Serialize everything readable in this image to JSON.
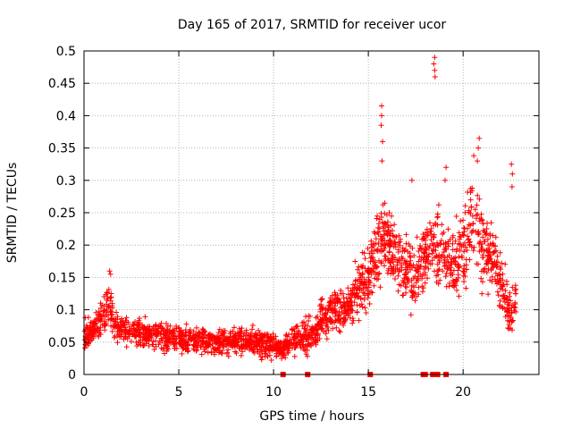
{
  "chart_data": {
    "type": "scatter",
    "title": "Day 165 of 2017, SRMTID for receiver ucor",
    "xlabel": "GPS time / hours",
    "ylabel": "SRMTID / TECUs",
    "xlim": [
      0,
      24
    ],
    "ylim": [
      0,
      0.5
    ],
    "xticks": [
      0,
      5,
      10,
      15,
      20
    ],
    "xtick_labels": [
      "0",
      "5",
      "10",
      "15",
      "20"
    ],
    "yticks": [
      0,
      0.05,
      0.1,
      0.15,
      0.2,
      0.25,
      0.3,
      0.35,
      0.4,
      0.45,
      0.5
    ],
    "ytick_labels": [
      "0",
      "0.05",
      "0.1",
      "0.15",
      "0.2",
      "0.25",
      "0.3",
      "0.35",
      "0.4",
      "0.45",
      "0.5"
    ],
    "grid": true,
    "marker": "plus",
    "color": "#ff0000",
    "trend": {
      "x": [
        0,
        0.5,
        1.0,
        1.3,
        1.6,
        2.0,
        3.0,
        4.0,
        5.0,
        6.0,
        7.0,
        8.0,
        9.0,
        10.0,
        10.5,
        11.0,
        12.0,
        12.5,
        13.0,
        13.5,
        14.0,
        14.5,
        15.0,
        15.5,
        16.0,
        16.5,
        17.0,
        17.5,
        18.0,
        18.5,
        19.0,
        19.5,
        20.0,
        20.5,
        21.0,
        21.5,
        22.0,
        22.5,
        22.8
      ],
      "y": [
        0.06,
        0.07,
        0.09,
        0.11,
        0.08,
        0.07,
        0.065,
        0.06,
        0.055,
        0.055,
        0.05,
        0.05,
        0.05,
        0.045,
        0.04,
        0.055,
        0.06,
        0.08,
        0.095,
        0.1,
        0.11,
        0.135,
        0.15,
        0.2,
        0.21,
        0.18,
        0.16,
        0.15,
        0.2,
        0.2,
        0.18,
        0.16,
        0.2,
        0.24,
        0.2,
        0.18,
        0.14,
        0.09,
        0.12
      ],
      "spread": [
        0.02,
        0.02,
        0.025,
        0.03,
        0.025,
        0.02,
        0.02,
        0.02,
        0.018,
        0.018,
        0.018,
        0.018,
        0.018,
        0.018,
        0.015,
        0.02,
        0.025,
        0.03,
        0.03,
        0.03,
        0.035,
        0.04,
        0.05,
        0.06,
        0.06,
        0.05,
        0.05,
        0.05,
        0.06,
        0.06,
        0.05,
        0.05,
        0.06,
        0.07,
        0.06,
        0.05,
        0.04,
        0.03,
        0.03
      ]
    },
    "outliers": [
      {
        "x": 18.5,
        "y": 0.49
      },
      {
        "x": 18.5,
        "y": 0.47
      },
      {
        "x": 18.52,
        "y": 0.46
      },
      {
        "x": 18.45,
        "y": 0.48
      },
      {
        "x": 15.7,
        "y": 0.415
      },
      {
        "x": 15.7,
        "y": 0.4
      },
      {
        "x": 15.68,
        "y": 0.385
      },
      {
        "x": 15.75,
        "y": 0.36
      },
      {
        "x": 15.72,
        "y": 0.33
      },
      {
        "x": 20.85,
        "y": 0.365
      },
      {
        "x": 20.8,
        "y": 0.35
      },
      {
        "x": 20.75,
        "y": 0.33
      },
      {
        "x": 22.55,
        "y": 0.325
      },
      {
        "x": 22.6,
        "y": 0.31
      },
      {
        "x": 22.58,
        "y": 0.29
      },
      {
        "x": 19.1,
        "y": 0.32
      },
      {
        "x": 19.05,
        "y": 0.3
      },
      {
        "x": 1.35,
        "y": 0.16
      },
      {
        "x": 1.4,
        "y": 0.155
      },
      {
        "x": 16.1,
        "y": 0.25
      },
      {
        "x": 17.3,
        "y": 0.3
      }
    ],
    "gap_markers_x": [
      10.5,
      11.8,
      15.1,
      17.9,
      18.0,
      18.4,
      18.65,
      19.1
    ]
  }
}
